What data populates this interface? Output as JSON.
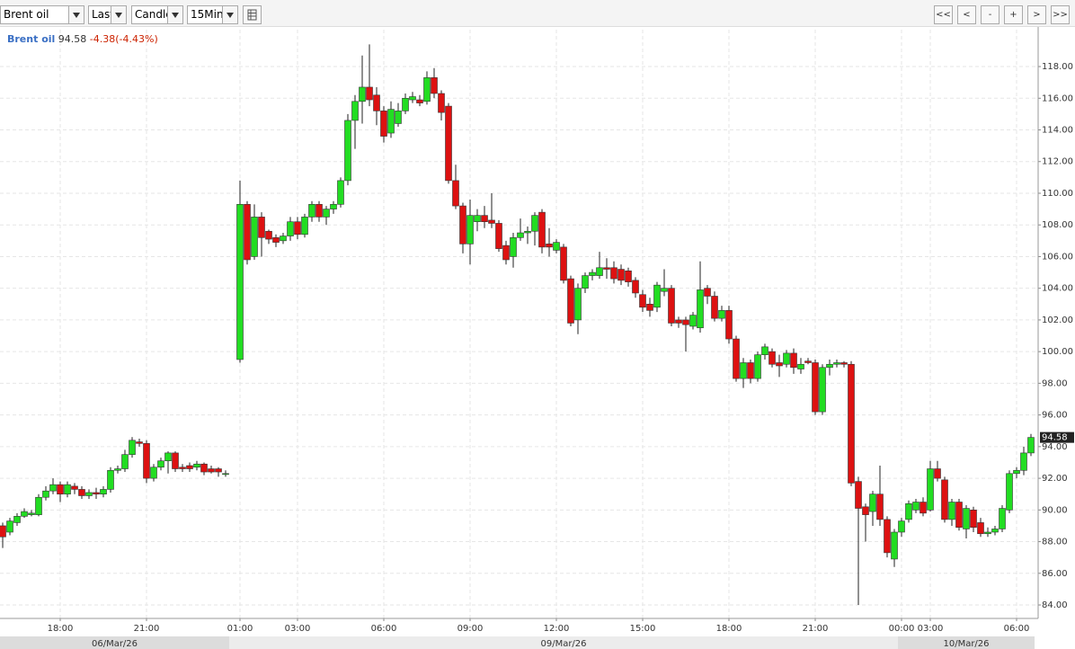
{
  "toolbar": {
    "instrument": "Brent oil",
    "price": "Last",
    "style": "Candle",
    "interval": "15Min",
    "nav": [
      "<<",
      "<",
      "-",
      "+",
      ">",
      ">>"
    ]
  },
  "chart_data": {
    "type": "candlestick",
    "series_name": "Brent oil",
    "last": 94.58,
    "change_label": "-4.38(-4.43%)",
    "up_color": "#22dd22",
    "down_color": "#dd1111",
    "grid": true,
    "ylim": [
      83.15,
      120.33
    ],
    "yticks": [
      {
        "value": 84,
        "label": "84.00"
      },
      {
        "value": 86,
        "label": "86.00"
      },
      {
        "value": 88,
        "label": "88.00"
      },
      {
        "value": 90,
        "label": "90.00"
      },
      {
        "value": 92,
        "label": "92.00"
      },
      {
        "value": 94,
        "label": "94.00"
      },
      {
        "value": 96,
        "label": "96.00"
      },
      {
        "value": 98,
        "label": "98.00"
      },
      {
        "value": 100,
        "label": "100.00"
      },
      {
        "value": 102,
        "label": "102.00"
      },
      {
        "value": 104,
        "label": "104.00"
      },
      {
        "value": 106,
        "label": "106.00"
      },
      {
        "value": 108,
        "label": "108.00"
      },
      {
        "value": 110,
        "label": "110.00"
      },
      {
        "value": 112,
        "label": "112.00"
      },
      {
        "value": 114,
        "label": "114.00"
      },
      {
        "value": 116,
        "label": "116.00"
      },
      {
        "value": 118,
        "label": "118.00"
      }
    ],
    "date_labels": [
      "06/Mar/26",
      "09/Mar/26",
      "10/Mar/26"
    ],
    "categories": [
      null,
      null,
      null,
      null,
      null,
      null,
      null,
      null,
      "18:00",
      null,
      null,
      null,
      null,
      null,
      null,
      null,
      null,
      null,
      null,
      null,
      "21:00",
      null,
      null,
      null,
      null,
      null,
      null,
      null,
      null,
      null,
      null,
      null,
      null,
      "01:00",
      null,
      null,
      null,
      null,
      null,
      null,
      null,
      "03:00",
      null,
      null,
      null,
      null,
      null,
      null,
      null,
      null,
      null,
      null,
      null,
      "06:00",
      null,
      null,
      null,
      null,
      null,
      null,
      null,
      null,
      null,
      null,
      null,
      "09:00",
      null,
      null,
      null,
      null,
      null,
      null,
      null,
      null,
      null,
      null,
      null,
      "12:00",
      null,
      null,
      null,
      null,
      null,
      null,
      null,
      null,
      null,
      null,
      null,
      "15:00",
      null,
      null,
      null,
      null,
      null,
      null,
      null,
      null,
      null,
      null,
      null,
      "18:00",
      null,
      null,
      null,
      null,
      null,
      null,
      null,
      null,
      null,
      null,
      null,
      "21:00",
      null,
      null,
      null,
      null,
      null,
      null,
      null,
      null,
      null,
      null,
      null,
      "00:00",
      null,
      null,
      null,
      "03:00",
      null,
      null,
      null,
      null,
      null,
      null,
      null,
      null,
      null,
      null,
      null,
      "06:00",
      null,
      null
    ],
    "open": [
      89.0,
      88.6,
      89.2,
      89.6,
      89.7,
      89.7,
      90.8,
      91.2,
      91.6,
      91.0,
      91.5,
      91.3,
      90.9,
      91.1,
      91.0,
      91.3,
      92.5,
      92.6,
      93.5,
      94.3,
      94.2,
      92.0,
      92.7,
      93.1,
      93.6,
      92.7,
      92.8,
      92.7,
      92.9,
      92.6,
      92.6,
      92.3,
      null,
      99.5,
      109.3,
      106.0,
      108.5,
      107.6,
      107.2,
      107.0,
      107.3,
      108.2,
      107.4,
      108.5,
      109.3,
      108.5,
      109.0,
      109.3,
      110.8,
      114.6,
      115.8,
      116.7,
      116.2,
      115.2,
      113.8,
      114.4,
      115.2,
      115.9,
      115.9,
      115.8,
      117.3,
      116.3,
      115.5,
      110.8,
      109.2,
      106.8,
      108.2,
      108.6,
      108.3,
      108.1,
      106.7,
      106.0,
      107.2,
      107.5,
      107.6,
      108.8,
      106.8,
      106.4,
      106.6,
      104.6,
      102.0,
      104.0,
      104.8,
      104.8,
      105.3,
      105.3,
      105.2,
      105.1,
      104.5,
      103.6,
      103.0,
      102.8,
      103.8,
      104.0,
      102.0,
      102.0,
      101.6,
      101.5,
      104.0,
      103.5,
      102.1,
      102.6,
      100.8,
      98.3,
      99.3,
      98.3,
      99.8,
      100.0,
      99.3,
      99.2,
      99.9,
      98.9,
      99.4,
      99.3,
      96.2,
      99.0,
      99.2,
      99.3,
      99.2,
      91.8,
      90.2,
      89.9,
      91.0,
      89.4,
      86.9,
      88.6,
      89.4,
      90.0,
      90.5,
      90.0,
      92.6,
      91.9,
      89.4,
      90.5,
      88.8,
      90.0,
      89.2,
      88.5,
      88.6,
      88.8,
      90.0,
      92.3,
      92.5,
      93.6
    ],
    "high": [
      89.2,
      89.5,
      89.8,
      90.1,
      90.0,
      91.0,
      91.5,
      92.0,
      91.8,
      91.8,
      91.7,
      91.5,
      91.3,
      91.4,
      91.5,
      92.7,
      92.8,
      93.8,
      94.6,
      94.5,
      94.4,
      92.9,
      93.3,
      93.7,
      93.7,
      92.9,
      93.0,
      93.1,
      93.0,
      92.8,
      92.7,
      92.5,
      null,
      110.8,
      109.5,
      109.3,
      108.8,
      107.7,
      107.4,
      107.5,
      108.5,
      108.5,
      108.7,
      109.5,
      109.5,
      109.2,
      109.5,
      111.0,
      115.0,
      116.2,
      118.7,
      119.4,
      116.7,
      115.5,
      115.8,
      115.7,
      116.3,
      116.4,
      116.2,
      117.7,
      117.9,
      116.5,
      115.7,
      111.8,
      109.4,
      109.6,
      109.0,
      109.2,
      110.0,
      108.3,
      107.0,
      107.5,
      108.4,
      107.9,
      108.8,
      109.0,
      107.8,
      107.1,
      106.8,
      104.8,
      104.3,
      105.0,
      105.2,
      106.3,
      105.9,
      105.7,
      105.5,
      105.3,
      104.7,
      103.9,
      103.4,
      104.4,
      105.2,
      104.2,
      102.2,
      102.2,
      102.5,
      105.7,
      104.2,
      103.8,
      102.9,
      102.9,
      101.0,
      99.6,
      99.5,
      100.0,
      100.5,
      100.2,
      99.8,
      100.1,
      100.2,
      99.6,
      99.6,
      99.5,
      99.2,
      99.5,
      99.5,
      99.4,
      99.4,
      92.1,
      90.4,
      91.2,
      92.8,
      89.6,
      88.8,
      89.5,
      90.6,
      90.7,
      90.8,
      93.1,
      93.1,
      92.1,
      90.7,
      90.7,
      90.3,
      90.2,
      89.5,
      88.9,
      89.0,
      90.3,
      92.5,
      92.7,
      94.0,
      94.8
    ],
    "low": [
      87.6,
      88.4,
      89.0,
      89.5,
      89.6,
      89.6,
      90.6,
      91.0,
      90.5,
      90.8,
      91.0,
      90.7,
      90.7,
      90.7,
      90.8,
      91.1,
      92.3,
      92.4,
      93.3,
      94.0,
      91.7,
      91.8,
      92.5,
      92.3,
      92.4,
      92.4,
      92.4,
      92.5,
      92.2,
      92.3,
      92.1,
      92.1,
      null,
      99.3,
      105.5,
      105.8,
      106.0,
      106.8,
      106.6,
      106.8,
      107.0,
      107.1,
      107.2,
      108.2,
      108.2,
      108.0,
      108.7,
      109.1,
      110.5,
      112.8,
      114.4,
      115.5,
      114.3,
      113.2,
      113.5,
      114.2,
      115.0,
      115.7,
      115.5,
      115.6,
      116.0,
      114.6,
      110.6,
      109.0,
      106.2,
      105.5,
      107.6,
      107.8,
      107.8,
      106.3,
      105.5,
      105.3,
      107.0,
      106.8,
      106.7,
      106.2,
      106.0,
      106.2,
      104.3,
      101.6,
      101.1,
      103.7,
      104.5,
      104.6,
      104.6,
      104.3,
      104.2,
      104.1,
      103.4,
      102.5,
      102.2,
      102.5,
      103.5,
      101.6,
      101.5,
      100.0,
      101.4,
      101.2,
      103.0,
      101.9,
      101.9,
      100.5,
      98.1,
      97.7,
      98.0,
      98.1,
      99.5,
      99.0,
      98.4,
      99.0,
      98.6,
      98.6,
      99.2,
      96.0,
      96.0,
      98.5,
      99.0,
      99.0,
      91.5,
      84.0,
      88.0,
      89.0,
      89.0,
      87.0,
      86.4,
      88.3,
      89.2,
      89.8,
      89.6,
      89.9,
      91.8,
      89.2,
      89.0,
      88.7,
      88.2,
      88.6,
      88.3,
      88.3,
      88.4,
      88.6,
      89.8,
      92.0,
      92.2,
      93.4
    ],
    "close": [
      88.3,
      89.3,
      89.6,
      89.9,
      89.8,
      90.8,
      91.2,
      91.6,
      91.0,
      91.6,
      91.3,
      90.9,
      91.1,
      91.0,
      91.3,
      92.5,
      92.6,
      93.5,
      94.4,
      94.2,
      92.0,
      92.7,
      93.1,
      93.6,
      92.6,
      92.6,
      92.6,
      92.9,
      92.4,
      92.4,
      92.4,
      92.3,
      null,
      109.3,
      105.8,
      108.5,
      107.2,
      107.1,
      106.9,
      107.3,
      108.2,
      107.4,
      108.5,
      109.3,
      108.5,
      109.0,
      109.3,
      110.8,
      114.6,
      115.8,
      116.7,
      115.9,
      115.2,
      113.6,
      115.3,
      115.2,
      116.0,
      116.1,
      115.7,
      117.3,
      116.3,
      115.1,
      110.8,
      109.2,
      106.8,
      108.6,
      108.6,
      108.2,
      108.1,
      106.5,
      105.8,
      107.2,
      107.5,
      107.6,
      108.6,
      106.6,
      106.6,
      106.9,
      104.5,
      101.8,
      104.0,
      104.8,
      105.0,
      105.3,
      105.2,
      104.6,
      104.5,
      104.4,
      103.7,
      102.8,
      102.6,
      104.2,
      104.0,
      101.8,
      101.8,
      101.7,
      102.3,
      103.9,
      103.5,
      102.1,
      102.6,
      100.8,
      98.3,
      99.3,
      98.3,
      99.8,
      100.3,
      99.2,
      99.1,
      99.9,
      99.0,
      99.2,
      99.3,
      96.2,
      99.0,
      99.2,
      99.3,
      99.2,
      91.7,
      90.1,
      89.7,
      91.0,
      89.4,
      87.3,
      88.6,
      89.3,
      90.4,
      90.5,
      89.8,
      92.6,
      92.0,
      89.4,
      90.5,
      88.9,
      90.1,
      88.9,
      88.5,
      88.6,
      88.8,
      90.1,
      92.3,
      92.5,
      93.6,
      94.58
    ]
  }
}
